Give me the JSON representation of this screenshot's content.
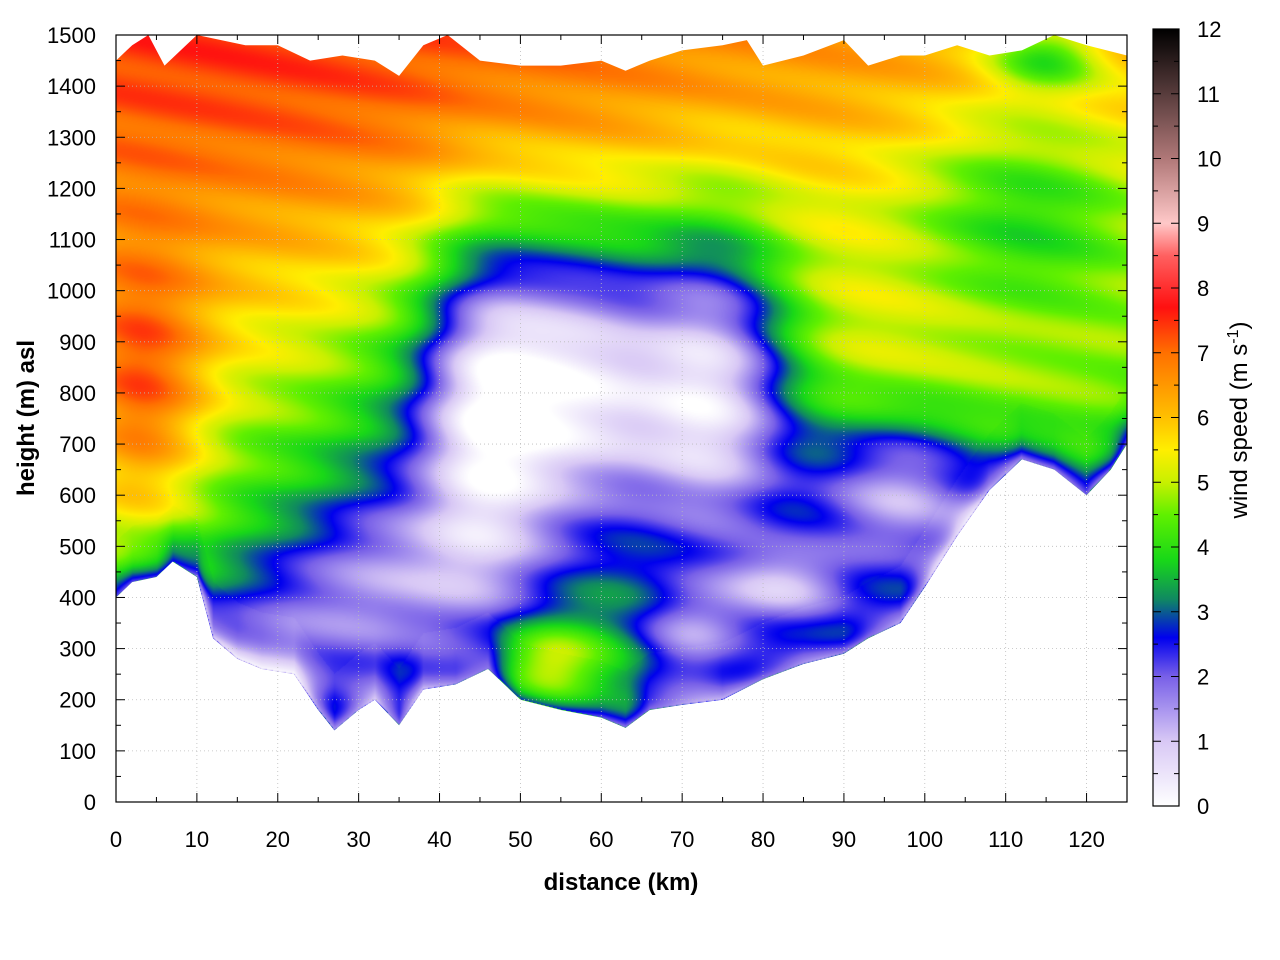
{
  "chart_data": {
    "type": "heatmap",
    "title": "",
    "xlabel": "distance (km)",
    "ylabel": "height (m) asl",
    "colorbar_label": "wind speed (m s-1)",
    "colorbar_label_parts": {
      "prefix": "wind speed (m s",
      "exp": "-1",
      "suffix": ")"
    },
    "xlim": [
      0,
      125
    ],
    "ylim": [
      0,
      1500
    ],
    "clim": [
      0,
      12
    ],
    "x_ticks": [
      "0",
      "10",
      "20",
      "30",
      "40",
      "50",
      "60",
      "70",
      "80",
      "90",
      "100",
      "110",
      "120"
    ],
    "y_ticks": [
      "0",
      "100",
      "200",
      "300",
      "400",
      "500",
      "600",
      "700",
      "800",
      "900",
      "1000",
      "1100",
      "1200",
      "1300",
      "1400",
      "1500"
    ],
    "c_ticks": [
      "0",
      "1",
      "2",
      "3",
      "4",
      "5",
      "6",
      "7",
      "8",
      "9",
      "10",
      "11",
      "12"
    ],
    "grid": true,
    "colormap": [
      {
        "v": 0,
        "color": "#ffffff"
      },
      {
        "v": 1,
        "color": "#d8c8f5"
      },
      {
        "v": 2,
        "color": "#7860e8"
      },
      {
        "v": 2.6,
        "color": "#0000ee"
      },
      {
        "v": 3.2,
        "color": "#108a60"
      },
      {
        "v": 3.8,
        "color": "#18d818"
      },
      {
        "v": 4.5,
        "color": "#60f000"
      },
      {
        "v": 5,
        "color": "#c8f000"
      },
      {
        "v": 5.5,
        "color": "#ffee00"
      },
      {
        "v": 6,
        "color": "#ffc000"
      },
      {
        "v": 7,
        "color": "#ff7000"
      },
      {
        "v": 7.7,
        "color": "#ff1010"
      },
      {
        "v": 8.5,
        "color": "#ff6060"
      },
      {
        "v": 9,
        "color": "#ffc8c8"
      },
      {
        "v": 10,
        "color": "#b07878"
      },
      {
        "v": 12,
        "color": "#000000"
      }
    ],
    "terrain_profile": [
      {
        "x": 0,
        "y": 400
      },
      {
        "x": 2,
        "y": 430
      },
      {
        "x": 5,
        "y": 440
      },
      {
        "x": 7,
        "y": 470
      },
      {
        "x": 10,
        "y": 440
      },
      {
        "x": 12,
        "y": 320
      },
      {
        "x": 15,
        "y": 280
      },
      {
        "x": 18,
        "y": 260
      },
      {
        "x": 22,
        "y": 250
      },
      {
        "x": 25,
        "y": 180
      },
      {
        "x": 27,
        "y": 140
      },
      {
        "x": 30,
        "y": 180
      },
      {
        "x": 32,
        "y": 200
      },
      {
        "x": 35,
        "y": 150
      },
      {
        "x": 38,
        "y": 220
      },
      {
        "x": 42,
        "y": 230
      },
      {
        "x": 46,
        "y": 260
      },
      {
        "x": 50,
        "y": 200
      },
      {
        "x": 55,
        "y": 180
      },
      {
        "x": 60,
        "y": 165
      },
      {
        "x": 63,
        "y": 145
      },
      {
        "x": 66,
        "y": 180
      },
      {
        "x": 70,
        "y": 190
      },
      {
        "x": 75,
        "y": 200
      },
      {
        "x": 80,
        "y": 240
      },
      {
        "x": 85,
        "y": 270
      },
      {
        "x": 90,
        "y": 290
      },
      {
        "x": 93,
        "y": 320
      },
      {
        "x": 97,
        "y": 350
      },
      {
        "x": 100,
        "y": 420
      },
      {
        "x": 104,
        "y": 520
      },
      {
        "x": 108,
        "y": 610
      },
      {
        "x": 112,
        "y": 670
      },
      {
        "x": 116,
        "y": 650
      },
      {
        "x": 120,
        "y": 600
      },
      {
        "x": 123,
        "y": 650
      },
      {
        "x": 125,
        "y": 700
      }
    ],
    "top_profile": [
      {
        "x": 0,
        "y": 1450
      },
      {
        "x": 2,
        "y": 1480
      },
      {
        "x": 4,
        "y": 1500
      },
      {
        "x": 6,
        "y": 1440
      },
      {
        "x": 10,
        "y": 1500
      },
      {
        "x": 13,
        "y": 1490
      },
      {
        "x": 16,
        "y": 1480
      },
      {
        "x": 20,
        "y": 1480
      },
      {
        "x": 24,
        "y": 1450
      },
      {
        "x": 28,
        "y": 1460
      },
      {
        "x": 32,
        "y": 1450
      },
      {
        "x": 35,
        "y": 1420
      },
      {
        "x": 38,
        "y": 1480
      },
      {
        "x": 41,
        "y": 1500
      },
      {
        "x": 45,
        "y": 1450
      },
      {
        "x": 50,
        "y": 1440
      },
      {
        "x": 55,
        "y": 1440
      },
      {
        "x": 60,
        "y": 1450
      },
      {
        "x": 63,
        "y": 1430
      },
      {
        "x": 66,
        "y": 1450
      },
      {
        "x": 70,
        "y": 1470
      },
      {
        "x": 75,
        "y": 1480
      },
      {
        "x": 78,
        "y": 1490
      },
      {
        "x": 80,
        "y": 1440
      },
      {
        "x": 85,
        "y": 1460
      },
      {
        "x": 90,
        "y": 1490
      },
      {
        "x": 93,
        "y": 1440
      },
      {
        "x": 97,
        "y": 1460
      },
      {
        "x": 100,
        "y": 1460
      },
      {
        "x": 104,
        "y": 1480
      },
      {
        "x": 108,
        "y": 1460
      },
      {
        "x": 112,
        "y": 1470
      },
      {
        "x": 116,
        "y": 1500
      },
      {
        "x": 120,
        "y": 1480
      },
      {
        "x": 125,
        "y": 1460
      }
    ],
    "features": [
      {
        "x": -6,
        "y": 1300,
        "sx": 50,
        "sy": 600,
        "a": 1.1
      },
      {
        "x": 3,
        "y": 780,
        "sx": 6,
        "sy": 200,
        "a": 2.2
      },
      {
        "x": 25,
        "y": 1320,
        "sx": 25,
        "sy": 250,
        "a": 0.3
      },
      {
        "x": 60,
        "y": 1380,
        "sx": 40,
        "sy": 120,
        "a": 0.3
      },
      {
        "x": 115,
        "y": 1460,
        "sx": 5,
        "sy": 50,
        "a": -2.0
      },
      {
        "x": 112,
        "y": 1150,
        "sx": 10,
        "sy": 150,
        "a": -1.5
      },
      {
        "x": 100,
        "y": 850,
        "sx": 20,
        "sy": 180,
        "a": 0.8
      },
      {
        "x": 35,
        "y": 450,
        "sx": 14,
        "sy": 120,
        "a": -2.0
      },
      {
        "x": 45,
        "y": 780,
        "sx": 6,
        "sy": 240,
        "a": -3.5
      },
      {
        "x": 57,
        "y": 840,
        "sx": 8,
        "sy": 200,
        "a": -4.0
      },
      {
        "x": 74,
        "y": 820,
        "sx": 7,
        "sy": 220,
        "a": -4.0
      },
      {
        "x": 97,
        "y": 600,
        "sx": 8,
        "sy": 110,
        "a": -3.0
      },
      {
        "x": 83,
        "y": 420,
        "sx": 6,
        "sy": 60,
        "a": -2.5
      },
      {
        "x": 20,
        "y": 300,
        "sx": 12,
        "sy": 100,
        "a": -1.5
      },
      {
        "x": 53,
        "y": 260,
        "sx": 5,
        "sy": 60,
        "a": 2.0
      },
      {
        "x": 71,
        "y": 320,
        "sx": 5,
        "sy": 70,
        "a": -2.0
      },
      {
        "x": 32,
        "y": 700,
        "sx": 6,
        "sy": 250,
        "a": -0.6
      }
    ]
  }
}
